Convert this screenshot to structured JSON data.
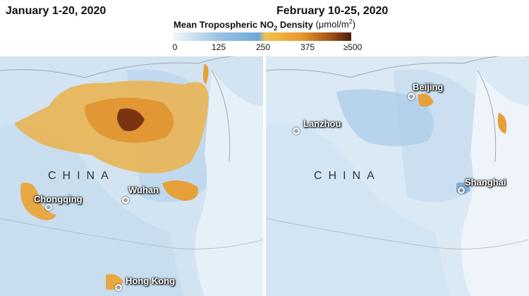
{
  "panels": {
    "left": {
      "title": "January 1-20, 2020"
    },
    "right": {
      "title": "February 10-25, 2020"
    }
  },
  "legend": {
    "title_prefix": "Mean Tropospheric NO",
    "title_subscript": "2",
    "title_suffix": " Density",
    "unit_prefix": "(μmol/m",
    "unit_superscript": "2",
    "unit_suffix": ")",
    "ticks": [
      "0",
      "125",
      "250",
      "375",
      "≥500"
    ],
    "colors": [
      "#f2f7fc",
      "#9ec4e4",
      "#6fa7d8",
      "#f2c14e",
      "#e89a2c",
      "#a5531a",
      "#4a1f07"
    ]
  },
  "labels": {
    "country": "CHINA",
    "cities_left": [
      "Chongqing",
      "Wuhan",
      "Hong Kong"
    ],
    "cities_right": [
      "Beijing",
      "Lanzhou",
      "Shanghai"
    ]
  }
}
